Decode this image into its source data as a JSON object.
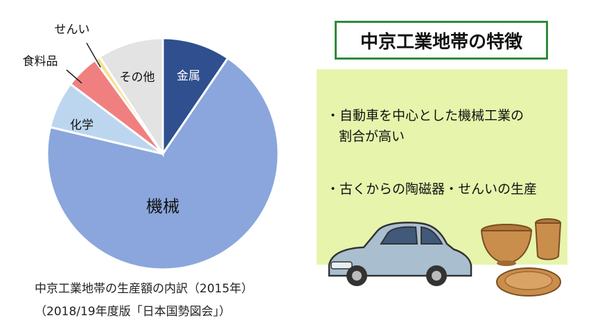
{
  "chart_data": {
    "type": "pie",
    "slices": [
      {
        "label": "金属",
        "value": 9.5,
        "color": "#2f4f8f"
      },
      {
        "label": "機械",
        "value": 69.2,
        "color": "#8aa6dc"
      },
      {
        "label": "化学",
        "value": 6.6,
        "color": "#bcd6ef"
      },
      {
        "label": "食料品",
        "value": 4.7,
        "color": "#f08080"
      },
      {
        "label": "せんい",
        "value": 0.8,
        "color": "#f6df96"
      },
      {
        "label": "その他",
        "value": 9.2,
        "color": "#e3e3e3"
      }
    ],
    "caption_line1": "中京工業地帯の生産額の内訳（2015年）",
    "caption_line2": "（2018/19年度版「日本国勢図会」）"
  },
  "panel": {
    "title": "中京工業地帯の特徴",
    "feature1_line1": "・自動車を中心とした機械工業の",
    "feature1_line2": "割合が高い",
    "feature2": "・古くからの陶磁器・せんいの生産"
  },
  "illustration": {
    "icons": [
      "car-icon",
      "pottery-cup-icon",
      "pottery-bowl-icon",
      "pottery-plate-icon"
    ]
  }
}
